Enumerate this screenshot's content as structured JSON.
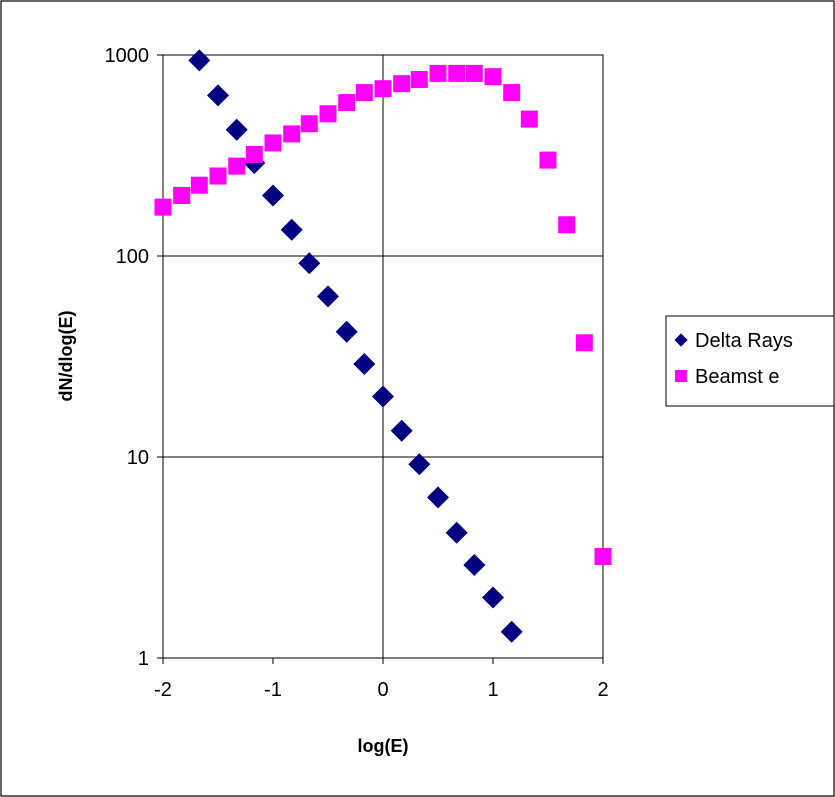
{
  "chart_data": {
    "type": "scatter",
    "title": "",
    "xlabel": "log(E)",
    "ylabel": "dN/dlog(E)",
    "xlim": [
      -2,
      2
    ],
    "ylim": [
      1,
      1000
    ],
    "yscale": "log",
    "grid": true,
    "legend_position": "right",
    "x_ticks": [
      {
        "value": -2,
        "label": "-2"
      },
      {
        "value": -1,
        "label": "-1"
      },
      {
        "value": 0,
        "label": "0"
      },
      {
        "value": 1,
        "label": "1"
      },
      {
        "value": 2,
        "label": "2"
      }
    ],
    "y_ticks": [
      {
        "value": 1,
        "label": "1"
      },
      {
        "value": 10,
        "label": "10"
      },
      {
        "value": 100,
        "label": "100"
      },
      {
        "value": 1000,
        "label": "1000"
      }
    ],
    "series": [
      {
        "name": "Delta Rays",
        "marker": "diamond",
        "color": "#000080",
        "points": [
          {
            "x": -1.67,
            "y": 940
          },
          {
            "x": -1.5,
            "y": 630
          },
          {
            "x": -1.33,
            "y": 425
          },
          {
            "x": -1.17,
            "y": 290
          },
          {
            "x": -1.0,
            "y": 200
          },
          {
            "x": -0.83,
            "y": 135
          },
          {
            "x": -0.67,
            "y": 92
          },
          {
            "x": -0.5,
            "y": 63
          },
          {
            "x": -0.33,
            "y": 42
          },
          {
            "x": -0.17,
            "y": 29
          },
          {
            "x": 0.0,
            "y": 20
          },
          {
            "x": 0.17,
            "y": 13.5
          },
          {
            "x": 0.33,
            "y": 9.2
          },
          {
            "x": 0.5,
            "y": 6.3
          },
          {
            "x": 0.67,
            "y": 4.2
          },
          {
            "x": 0.83,
            "y": 2.9
          },
          {
            "x": 1.0,
            "y": 2.0
          },
          {
            "x": 1.17,
            "y": 1.35
          }
        ]
      },
      {
        "name": "Beamst e",
        "marker": "square",
        "color": "#FF00FF",
        "points": [
          {
            "x": -2.0,
            "y": 175
          },
          {
            "x": -1.83,
            "y": 200
          },
          {
            "x": -1.67,
            "y": 225
          },
          {
            "x": -1.5,
            "y": 250
          },
          {
            "x": -1.33,
            "y": 280
          },
          {
            "x": -1.17,
            "y": 320
          },
          {
            "x": -1.0,
            "y": 365
          },
          {
            "x": -0.83,
            "y": 405
          },
          {
            "x": -0.67,
            "y": 455
          },
          {
            "x": -0.5,
            "y": 510
          },
          {
            "x": -0.33,
            "y": 580
          },
          {
            "x": -0.17,
            "y": 650
          },
          {
            "x": 0.0,
            "y": 680
          },
          {
            "x": 0.17,
            "y": 720
          },
          {
            "x": 0.33,
            "y": 755
          },
          {
            "x": 0.5,
            "y": 810
          },
          {
            "x": 0.67,
            "y": 810
          },
          {
            "x": 0.83,
            "y": 810
          },
          {
            "x": 1.0,
            "y": 780
          },
          {
            "x": 1.17,
            "y": 650
          },
          {
            "x": 1.33,
            "y": 480
          },
          {
            "x": 1.5,
            "y": 300
          },
          {
            "x": 1.67,
            "y": 143
          },
          {
            "x": 1.83,
            "y": 37
          },
          {
            "x": 2.0,
            "y": 3.2
          }
        ]
      }
    ]
  }
}
